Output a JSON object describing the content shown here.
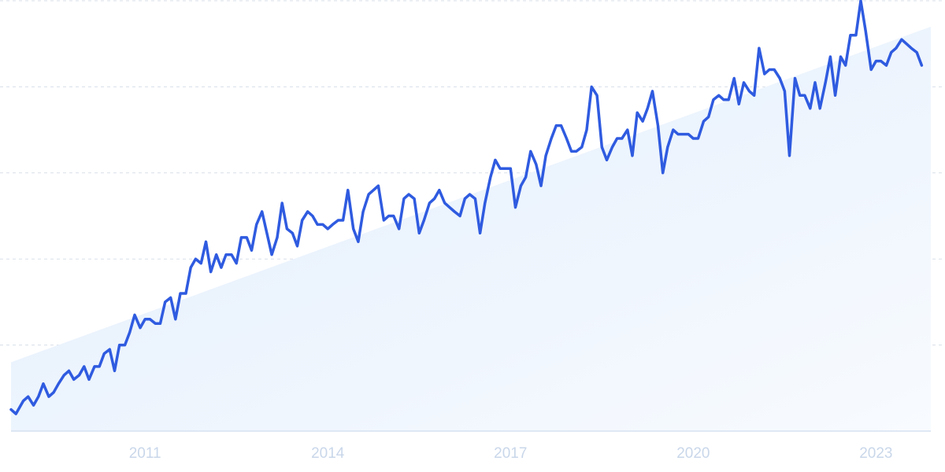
{
  "chart_data": {
    "type": "line",
    "title": "",
    "xlabel": "",
    "ylabel": "",
    "x_tick_labels": [
      "2011",
      "2014",
      "2017",
      "2020",
      "2023"
    ],
    "x_tick_values": [
      2011,
      2014,
      2017,
      2020,
      2023
    ],
    "xlim": [
      2008.8,
      2023.9
    ],
    "ylim": [
      0,
      100
    ],
    "y_gridlines": [
      0,
      20,
      40,
      60,
      80,
      100
    ],
    "y_tick_labels_visible": false,
    "grid": true,
    "legend": "none",
    "trend_area": {
      "start": [
        2008.8,
        16
      ],
      "end": [
        2023.9,
        94
      ]
    },
    "series": [
      {
        "points": [
          [
            2008.8,
            5
          ],
          [
            2008.88,
            4
          ],
          [
            2009.0,
            7
          ],
          [
            2009.08,
            8
          ],
          [
            2009.17,
            6
          ],
          [
            2009.25,
            8
          ],
          [
            2009.33,
            11
          ],
          [
            2009.42,
            8
          ],
          [
            2009.5,
            9
          ],
          [
            2009.58,
            11
          ],
          [
            2009.67,
            13
          ],
          [
            2009.75,
            14
          ],
          [
            2009.83,
            12
          ],
          [
            2009.92,
            13
          ],
          [
            2010.0,
            15
          ],
          [
            2010.08,
            12
          ],
          [
            2010.17,
            15
          ],
          [
            2010.25,
            15
          ],
          [
            2010.33,
            18
          ],
          [
            2010.42,
            19
          ],
          [
            2010.5,
            14
          ],
          [
            2010.58,
            20
          ],
          [
            2010.67,
            20
          ],
          [
            2010.75,
            23
          ],
          [
            2010.83,
            27
          ],
          [
            2010.92,
            24
          ],
          [
            2011.0,
            26
          ],
          [
            2011.08,
            26
          ],
          [
            2011.17,
            25
          ],
          [
            2011.25,
            25
          ],
          [
            2011.33,
            30
          ],
          [
            2011.42,
            31
          ],
          [
            2011.5,
            26
          ],
          [
            2011.58,
            32
          ],
          [
            2011.67,
            32
          ],
          [
            2011.75,
            38
          ],
          [
            2011.83,
            40
          ],
          [
            2011.92,
            39
          ],
          [
            2012.0,
            44
          ],
          [
            2012.08,
            37
          ],
          [
            2012.17,
            41
          ],
          [
            2012.25,
            38
          ],
          [
            2012.33,
            41
          ],
          [
            2012.42,
            41
          ],
          [
            2012.5,
            39
          ],
          [
            2012.58,
            45
          ],
          [
            2012.67,
            45
          ],
          [
            2012.75,
            42
          ],
          [
            2012.83,
            48
          ],
          [
            2012.92,
            51
          ],
          [
            2013.0,
            46
          ],
          [
            2013.08,
            41
          ],
          [
            2013.17,
            45
          ],
          [
            2013.25,
            53
          ],
          [
            2013.33,
            47
          ],
          [
            2013.42,
            46
          ],
          [
            2013.5,
            43
          ],
          [
            2013.58,
            49
          ],
          [
            2013.67,
            51
          ],
          [
            2013.75,
            50
          ],
          [
            2013.83,
            48
          ],
          [
            2013.92,
            48
          ],
          [
            2014.0,
            47
          ],
          [
            2014.08,
            48
          ],
          [
            2014.17,
            49
          ],
          [
            2014.25,
            49
          ],
          [
            2014.33,
            56
          ],
          [
            2014.42,
            47
          ],
          [
            2014.5,
            44
          ],
          [
            2014.58,
            51
          ],
          [
            2014.67,
            55
          ],
          [
            2014.75,
            56
          ],
          [
            2014.83,
            57
          ],
          [
            2014.92,
            49
          ],
          [
            2015.0,
            50
          ],
          [
            2015.08,
            50
          ],
          [
            2015.17,
            47
          ],
          [
            2015.25,
            54
          ],
          [
            2015.33,
            55
          ],
          [
            2015.42,
            54
          ],
          [
            2015.5,
            46
          ],
          [
            2015.58,
            49
          ],
          [
            2015.67,
            53
          ],
          [
            2015.75,
            54
          ],
          [
            2015.83,
            56
          ],
          [
            2015.92,
            53
          ],
          [
            2016.0,
            52
          ],
          [
            2016.08,
            51
          ],
          [
            2016.17,
            50
          ],
          [
            2016.25,
            54
          ],
          [
            2016.33,
            55
          ],
          [
            2016.42,
            54
          ],
          [
            2016.5,
            46
          ],
          [
            2016.58,
            53
          ],
          [
            2016.67,
            59
          ],
          [
            2016.75,
            63
          ],
          [
            2016.83,
            61
          ],
          [
            2016.92,
            61
          ],
          [
            2017.0,
            61
          ],
          [
            2017.08,
            52
          ],
          [
            2017.17,
            57
          ],
          [
            2017.25,
            59
          ],
          [
            2017.33,
            65
          ],
          [
            2017.42,
            62
          ],
          [
            2017.5,
            57
          ],
          [
            2017.58,
            64
          ],
          [
            2017.67,
            68
          ],
          [
            2017.75,
            71
          ],
          [
            2017.83,
            71
          ],
          [
            2017.92,
            68
          ],
          [
            2018.0,
            65
          ],
          [
            2018.08,
            65
          ],
          [
            2018.17,
            66
          ],
          [
            2018.25,
            70
          ],
          [
            2018.33,
            80
          ],
          [
            2018.42,
            78
          ],
          [
            2018.5,
            66
          ],
          [
            2018.58,
            63
          ],
          [
            2018.67,
            66
          ],
          [
            2018.75,
            68
          ],
          [
            2018.83,
            68
          ],
          [
            2018.92,
            70
          ],
          [
            2019.0,
            64
          ],
          [
            2019.08,
            74
          ],
          [
            2019.17,
            72
          ],
          [
            2019.25,
            75
          ],
          [
            2019.33,
            79
          ],
          [
            2019.42,
            71
          ],
          [
            2019.5,
            60
          ],
          [
            2019.58,
            66
          ],
          [
            2019.67,
            70
          ],
          [
            2019.75,
            69
          ],
          [
            2019.83,
            69
          ],
          [
            2019.92,
            69
          ],
          [
            2020.0,
            68
          ],
          [
            2020.08,
            68
          ],
          [
            2020.17,
            72
          ],
          [
            2020.25,
            73
          ],
          [
            2020.33,
            77
          ],
          [
            2020.42,
            78
          ],
          [
            2020.5,
            77
          ],
          [
            2020.58,
            77
          ],
          [
            2020.67,
            82
          ],
          [
            2020.75,
            76
          ],
          [
            2020.83,
            81
          ],
          [
            2020.92,
            79
          ],
          [
            2021.0,
            78
          ],
          [
            2021.08,
            89
          ],
          [
            2021.17,
            83
          ],
          [
            2021.25,
            84
          ],
          [
            2021.33,
            84
          ],
          [
            2021.42,
            82
          ],
          [
            2021.5,
            79
          ],
          [
            2021.58,
            64
          ],
          [
            2021.67,
            82
          ],
          [
            2021.75,
            78
          ],
          [
            2021.83,
            78
          ],
          [
            2021.92,
            75
          ],
          [
            2022.0,
            81
          ],
          [
            2022.08,
            75
          ],
          [
            2022.17,
            81
          ],
          [
            2022.25,
            87
          ],
          [
            2022.33,
            78
          ],
          [
            2022.42,
            87
          ],
          [
            2022.5,
            85
          ],
          [
            2022.58,
            92
          ],
          [
            2022.67,
            92
          ],
          [
            2022.75,
            100
          ],
          [
            2022.83,
            93
          ],
          [
            2022.92,
            84
          ],
          [
            2023.0,
            86
          ],
          [
            2023.08,
            86
          ],
          [
            2023.17,
            85
          ],
          [
            2023.25,
            88
          ],
          [
            2023.33,
            89
          ],
          [
            2023.42,
            91
          ],
          [
            2023.5,
            90
          ],
          [
            2023.58,
            89
          ],
          [
            2023.67,
            88
          ],
          [
            2023.75,
            85
          ]
        ]
      }
    ],
    "colors": {
      "line": "#2f5be0",
      "area_top": "#e1edfb",
      "area_bottom": "#f8fbff",
      "gridline": "#d8dfe9",
      "baseline": "#d5e2f2",
      "tick_label": "#c9d7ea"
    }
  }
}
